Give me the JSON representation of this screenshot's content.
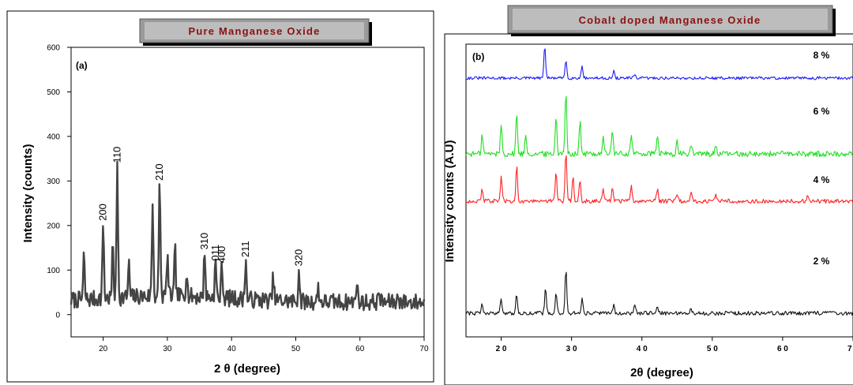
{
  "chart_data": [
    {
      "type": "line",
      "title": "Pure Manganese Oxide",
      "panel_label": "(a)",
      "xlabel": "2 θ (degree)",
      "ylabel": "Intensity (counts)",
      "xlim": [
        15,
        70
      ],
      "ylim": [
        -50,
        600
      ],
      "xticks": [
        20,
        30,
        40,
        50,
        60,
        70
      ],
      "yticks": [
        0,
        100,
        200,
        300,
        400,
        500,
        600
      ],
      "grid": false,
      "line_color": "#444444",
      "peaks": [
        {
          "x": 17,
          "y": 125
        },
        {
          "x": 20,
          "y": 200,
          "label": "200"
        },
        {
          "x": 21.5,
          "y": 150
        },
        {
          "x": 22.2,
          "y": 330,
          "label": "110"
        },
        {
          "x": 24,
          "y": 100
        },
        {
          "x": 27.7,
          "y": 240
        },
        {
          "x": 28.8,
          "y": 290,
          "label": "210"
        },
        {
          "x": 30,
          "y": 120
        },
        {
          "x": 31.2,
          "y": 130
        },
        {
          "x": 33,
          "y": 90
        },
        {
          "x": 35.8,
          "y": 135,
          "label": "310"
        },
        {
          "x": 37.5,
          "y": 110,
          "label": "011"
        },
        {
          "x": 38.5,
          "y": 105,
          "label": "400"
        },
        {
          "x": 42.2,
          "y": 118,
          "label": "211"
        },
        {
          "x": 46.5,
          "y": 80
        },
        {
          "x": 50.5,
          "y": 98,
          "label": "320"
        },
        {
          "x": 53.5,
          "y": 60
        },
        {
          "x": 59.5,
          "y": 78
        },
        {
          "x": 63,
          "y": 50
        },
        {
          "x": 66,
          "y": 45
        }
      ]
    },
    {
      "type": "line",
      "title": "Cobalt doped Manganese Oxide",
      "panel_label": "(b)",
      "xlabel": "2θ (degree)",
      "ylabel": "Intensity counts (A.U)",
      "xlim": [
        15,
        70
      ],
      "xticks": [
        20,
        30,
        40,
        50,
        60,
        70
      ],
      "tick_labels": [
        "2 0",
        "3 0",
        "4 0",
        "5 0",
        "6 0",
        "7 0"
      ],
      "grid": false,
      "series": [
        {
          "name": "8%",
          "label": "8 %",
          "color": "#1a1aff",
          "peaks": [
            {
              "x": 26.2,
              "y": 1.0
            },
            {
              "x": 29.2,
              "y": 0.55
            },
            {
              "x": 31.5,
              "y": 0.4
            },
            {
              "x": 36,
              "y": 0.2
            },
            {
              "x": 39,
              "y": 0.12
            }
          ]
        },
        {
          "name": "6%",
          "label": "6 %",
          "color": "#22dd22",
          "peaks": [
            {
              "x": 17.3,
              "y": 0.3
            },
            {
              "x": 20,
              "y": 0.45
            },
            {
              "x": 22.2,
              "y": 0.62
            },
            {
              "x": 23.5,
              "y": 0.3
            },
            {
              "x": 27.8,
              "y": 0.6
            },
            {
              "x": 29.2,
              "y": 1.0
            },
            {
              "x": 31.2,
              "y": 0.5
            },
            {
              "x": 34.5,
              "y": 0.28
            },
            {
              "x": 35.8,
              "y": 0.38
            },
            {
              "x": 38.5,
              "y": 0.32
            },
            {
              "x": 42.2,
              "y": 0.3
            },
            {
              "x": 45,
              "y": 0.18
            },
            {
              "x": 47,
              "y": 0.15
            },
            {
              "x": 50.5,
              "y": 0.14
            }
          ]
        },
        {
          "name": "4%",
          "label": "4 %",
          "color": "#ff2222",
          "peaks": [
            {
              "x": 17.3,
              "y": 0.25
            },
            {
              "x": 20,
              "y": 0.5
            },
            {
              "x": 22.2,
              "y": 0.75
            },
            {
              "x": 27.8,
              "y": 0.65
            },
            {
              "x": 29.2,
              "y": 1.0
            },
            {
              "x": 30.2,
              "y": 0.5
            },
            {
              "x": 31.2,
              "y": 0.48
            },
            {
              "x": 34.5,
              "y": 0.25
            },
            {
              "x": 35.8,
              "y": 0.33
            },
            {
              "x": 38.5,
              "y": 0.3
            },
            {
              "x": 42.2,
              "y": 0.28
            },
            {
              "x": 45,
              "y": 0.18
            },
            {
              "x": 47,
              "y": 0.16
            },
            {
              "x": 50.5,
              "y": 0.14
            },
            {
              "x": 63.5,
              "y": 0.1
            }
          ]
        },
        {
          "name": "2%",
          "label": "2 %",
          "color": "#111111",
          "peaks": [
            {
              "x": 17.3,
              "y": 0.2
            },
            {
              "x": 20,
              "y": 0.35
            },
            {
              "x": 22.2,
              "y": 0.45
            },
            {
              "x": 26.3,
              "y": 0.6
            },
            {
              "x": 27.8,
              "y": 0.5
            },
            {
              "x": 29.2,
              "y": 1.0
            },
            {
              "x": 31.5,
              "y": 0.35
            },
            {
              "x": 36,
              "y": 0.22
            },
            {
              "x": 39,
              "y": 0.18
            },
            {
              "x": 42.2,
              "y": 0.14
            },
            {
              "x": 47,
              "y": 0.1
            }
          ]
        }
      ]
    }
  ]
}
